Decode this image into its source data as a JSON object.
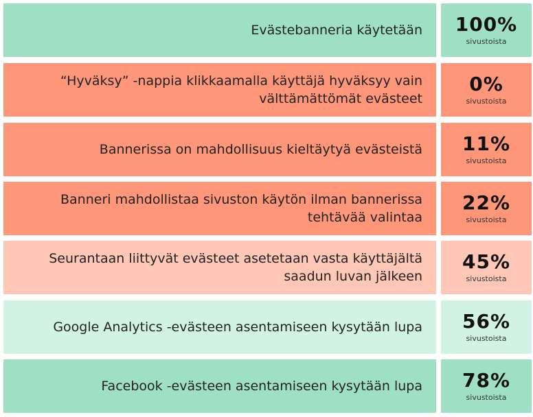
{
  "chart_data": {
    "type": "table",
    "unit": "sivustoista",
    "rows": [
      {
        "label": "Evästebanneria käytetään",
        "value": 100,
        "display": "100%",
        "color": "#9fe0c4"
      },
      {
        "label": "“Hyväksy” -nappia klikkaamalla käyttäjä hyväksyy vain välttämättömät evästeet",
        "value": 0,
        "display": "0%",
        "color": "#fe9679"
      },
      {
        "label": "Bannerissa on mahdollisuus kieltäytyä evästeistä",
        "value": 11,
        "display": "11%",
        "color": "#fe9679"
      },
      {
        "label": "Banneri mahdollistaa sivuston käytön ilman bannerissa tehtävää valintaa",
        "value": 22,
        "display": "22%",
        "color": "#fe9679"
      },
      {
        "label": "Seurantaan liittyvät evästeet asetetaan vasta käyttäjältä saadun luvan jälkeen",
        "value": 45,
        "display": "45%",
        "color": "#fec7b6"
      },
      {
        "label": "Google Analytics -evästeen asentamiseen kysytään lupa",
        "value": 56,
        "display": "56%",
        "color": "#d2f3e4"
      },
      {
        "label": "Facebook -evästeen asentamiseen kysytään lupa",
        "value": 78,
        "display": "78%",
        "color": "#9fe0c4"
      }
    ]
  }
}
